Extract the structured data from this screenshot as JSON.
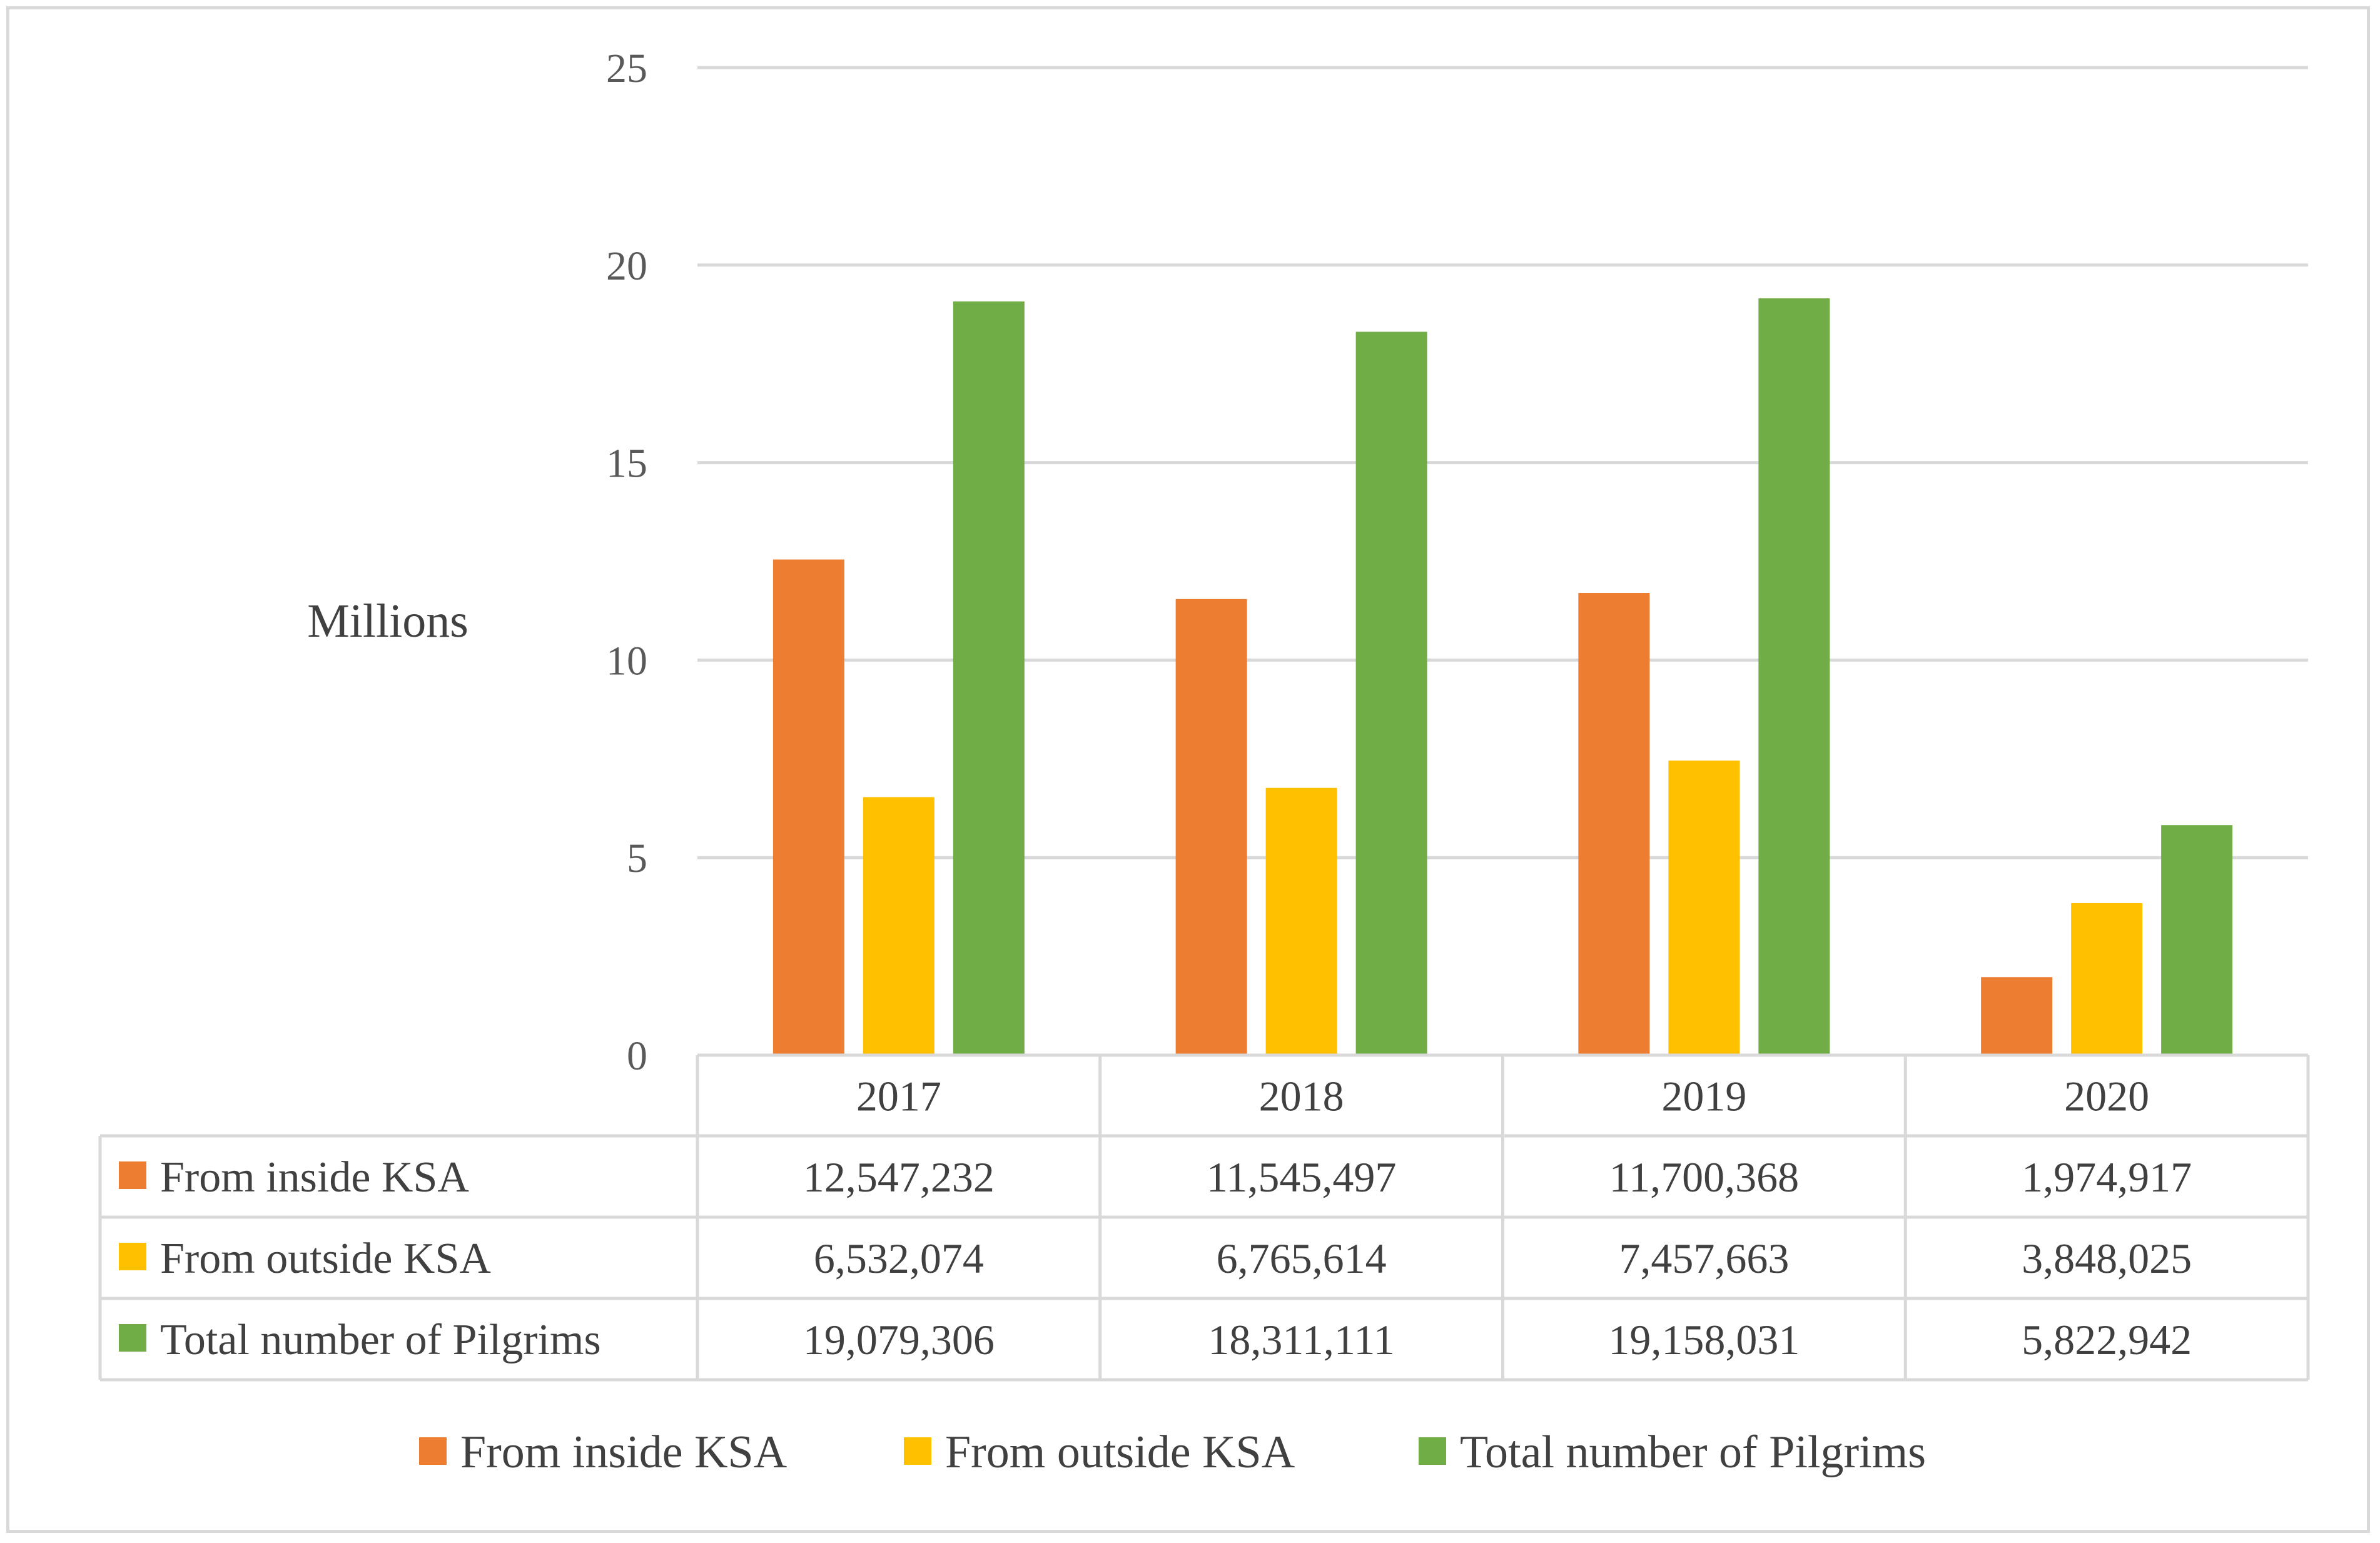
{
  "chart_data": {
    "type": "bar",
    "title": "",
    "xlabel": "",
    "ylabel": "Millions",
    "ylim": [
      0,
      25
    ],
    "yticks": [
      0,
      5,
      10,
      15,
      20,
      25
    ],
    "grid": true,
    "legend_position": "bottom",
    "categories": [
      "2017",
      "2018",
      "2019",
      "2020"
    ],
    "series": [
      {
        "name": "From inside KSA",
        "color": "#ed7d31",
        "values": [
          12.547232,
          11.545497,
          11.700368,
          1.974917
        ],
        "labels": [
          "12,547,232",
          "11,545,497",
          "11,700,368",
          "1,974,917"
        ]
      },
      {
        "name": "From outside KSA",
        "color": "#ffc000",
        "values": [
          6.532074,
          6.765614,
          7.457663,
          3.848025
        ],
        "labels": [
          "6,532,074",
          "6,765,614",
          "7,457,663",
          "3,848,025"
        ]
      },
      {
        "name": "Total number of Pilgrims",
        "color": "#70ad47",
        "values": [
          19.079306,
          18.311111,
          19.158031,
          5.822942
        ],
        "labels": [
          "19,079,306",
          "18,311,111",
          "19,158,031",
          "5,822,942"
        ]
      }
    ]
  }
}
